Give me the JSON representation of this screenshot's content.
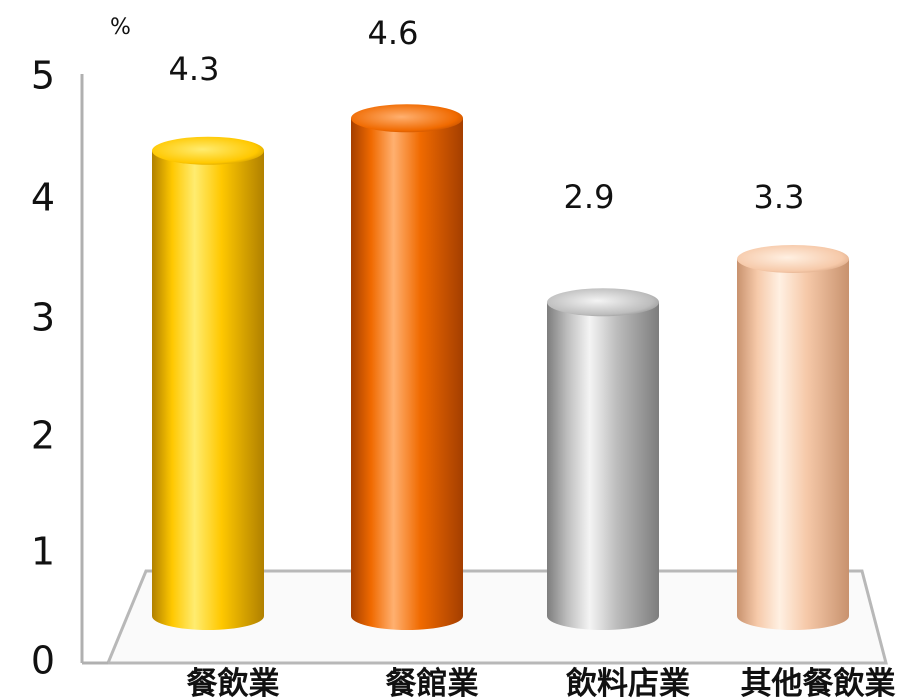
{
  "chart_data": {
    "type": "bar",
    "unit": "%",
    "categories": [
      "餐飲業",
      "餐館業",
      "飲料店業",
      "其他餐飲業"
    ],
    "values": [
      4.3,
      4.6,
      2.9,
      3.3
    ],
    "value_labels": [
      "4.3",
      "4.6",
      "2.9",
      "3.3"
    ],
    "ylim": [
      0,
      5
    ],
    "yticks": [
      "0",
      "1",
      "2",
      "3",
      "4",
      "5"
    ],
    "grid": false,
    "style": "3d-cylinder",
    "colors": [
      {
        "light": "#ffec70",
        "mid": "#ffc800",
        "dark": "#b08000"
      },
      {
        "light": "#ffb070",
        "mid": "#f06a00",
        "dark": "#a43e00"
      },
      {
        "light": "#f4f4f4",
        "mid": "#bdbdbd",
        "dark": "#7d7d7d"
      },
      {
        "light": "#fff0e2",
        "mid": "#f6c9a9",
        "dark": "#c8926e"
      }
    ]
  }
}
